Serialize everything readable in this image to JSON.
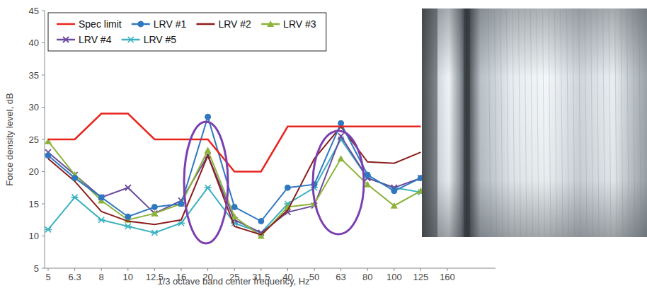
{
  "chart_data": {
    "type": "line",
    "x_label": "1/3 octave band center frequency, Hz",
    "y_label": "Force density level, dB",
    "categories": [
      "5",
      "6.3",
      "8",
      "10",
      "12.5",
      "16",
      "20",
      "25",
      "31.5",
      "40",
      "50",
      "63",
      "80",
      "100",
      "125",
      "160"
    ],
    "ylim": [
      5,
      45
    ],
    "yticks": [
      5,
      10,
      15,
      20,
      25,
      30,
      35,
      40,
      45
    ],
    "grid": false,
    "legend": "upper left",
    "series": [
      {
        "name": "Spec limit",
        "color": "#e8251f",
        "marker": "none",
        "line_style": "solid",
        "values": [
          25,
          25,
          29,
          29,
          25,
          25,
          25,
          20,
          20,
          27,
          27,
          27,
          27,
          27,
          27,
          null
        ]
      },
      {
        "name": "LRV #1",
        "color": "#2f78c0",
        "marker": "circle",
        "line_style": "solid",
        "values": [
          22.5,
          19,
          16,
          13,
          14.5,
          15,
          28.5,
          14.5,
          12.3,
          17.5,
          18,
          27.5,
          19.5,
          17,
          19,
          null
        ]
      },
      {
        "name": "LRV #2",
        "color": "#8b1c1c",
        "marker": "none",
        "line_style": "solid",
        "values": [
          22,
          18.5,
          13.8,
          12.3,
          11.8,
          12.5,
          22.5,
          11.5,
          10.2,
          14,
          22,
          27,
          21.5,
          21.3,
          23,
          null
        ]
      },
      {
        "name": "LRV #3",
        "color": "#8db33a",
        "marker": "triangle",
        "line_style": "solid",
        "values": [
          24.7,
          19.5,
          15.5,
          12.5,
          13.5,
          15,
          23.3,
          13,
          10,
          14.5,
          15,
          22,
          18,
          14.7,
          17,
          null
        ]
      },
      {
        "name": "LRV #4",
        "color": "#6a4c9c",
        "marker": "x",
        "line_style": "solid",
        "values": [
          23,
          19.5,
          16,
          17.5,
          13.5,
          15.5,
          22.5,
          12.5,
          10.5,
          13.7,
          14.7,
          25.5,
          19,
          17.5,
          19,
          null
        ]
      },
      {
        "name": "LRV #5",
        "color": "#3ab0c0",
        "marker": "star",
        "line_style": "solid",
        "values": [
          11,
          16,
          12.5,
          11.5,
          10.5,
          12,
          17.5,
          12,
          10.5,
          15,
          17.5,
          25,
          19,
          17.5,
          16.8,
          null
        ]
      }
    ]
  }
}
